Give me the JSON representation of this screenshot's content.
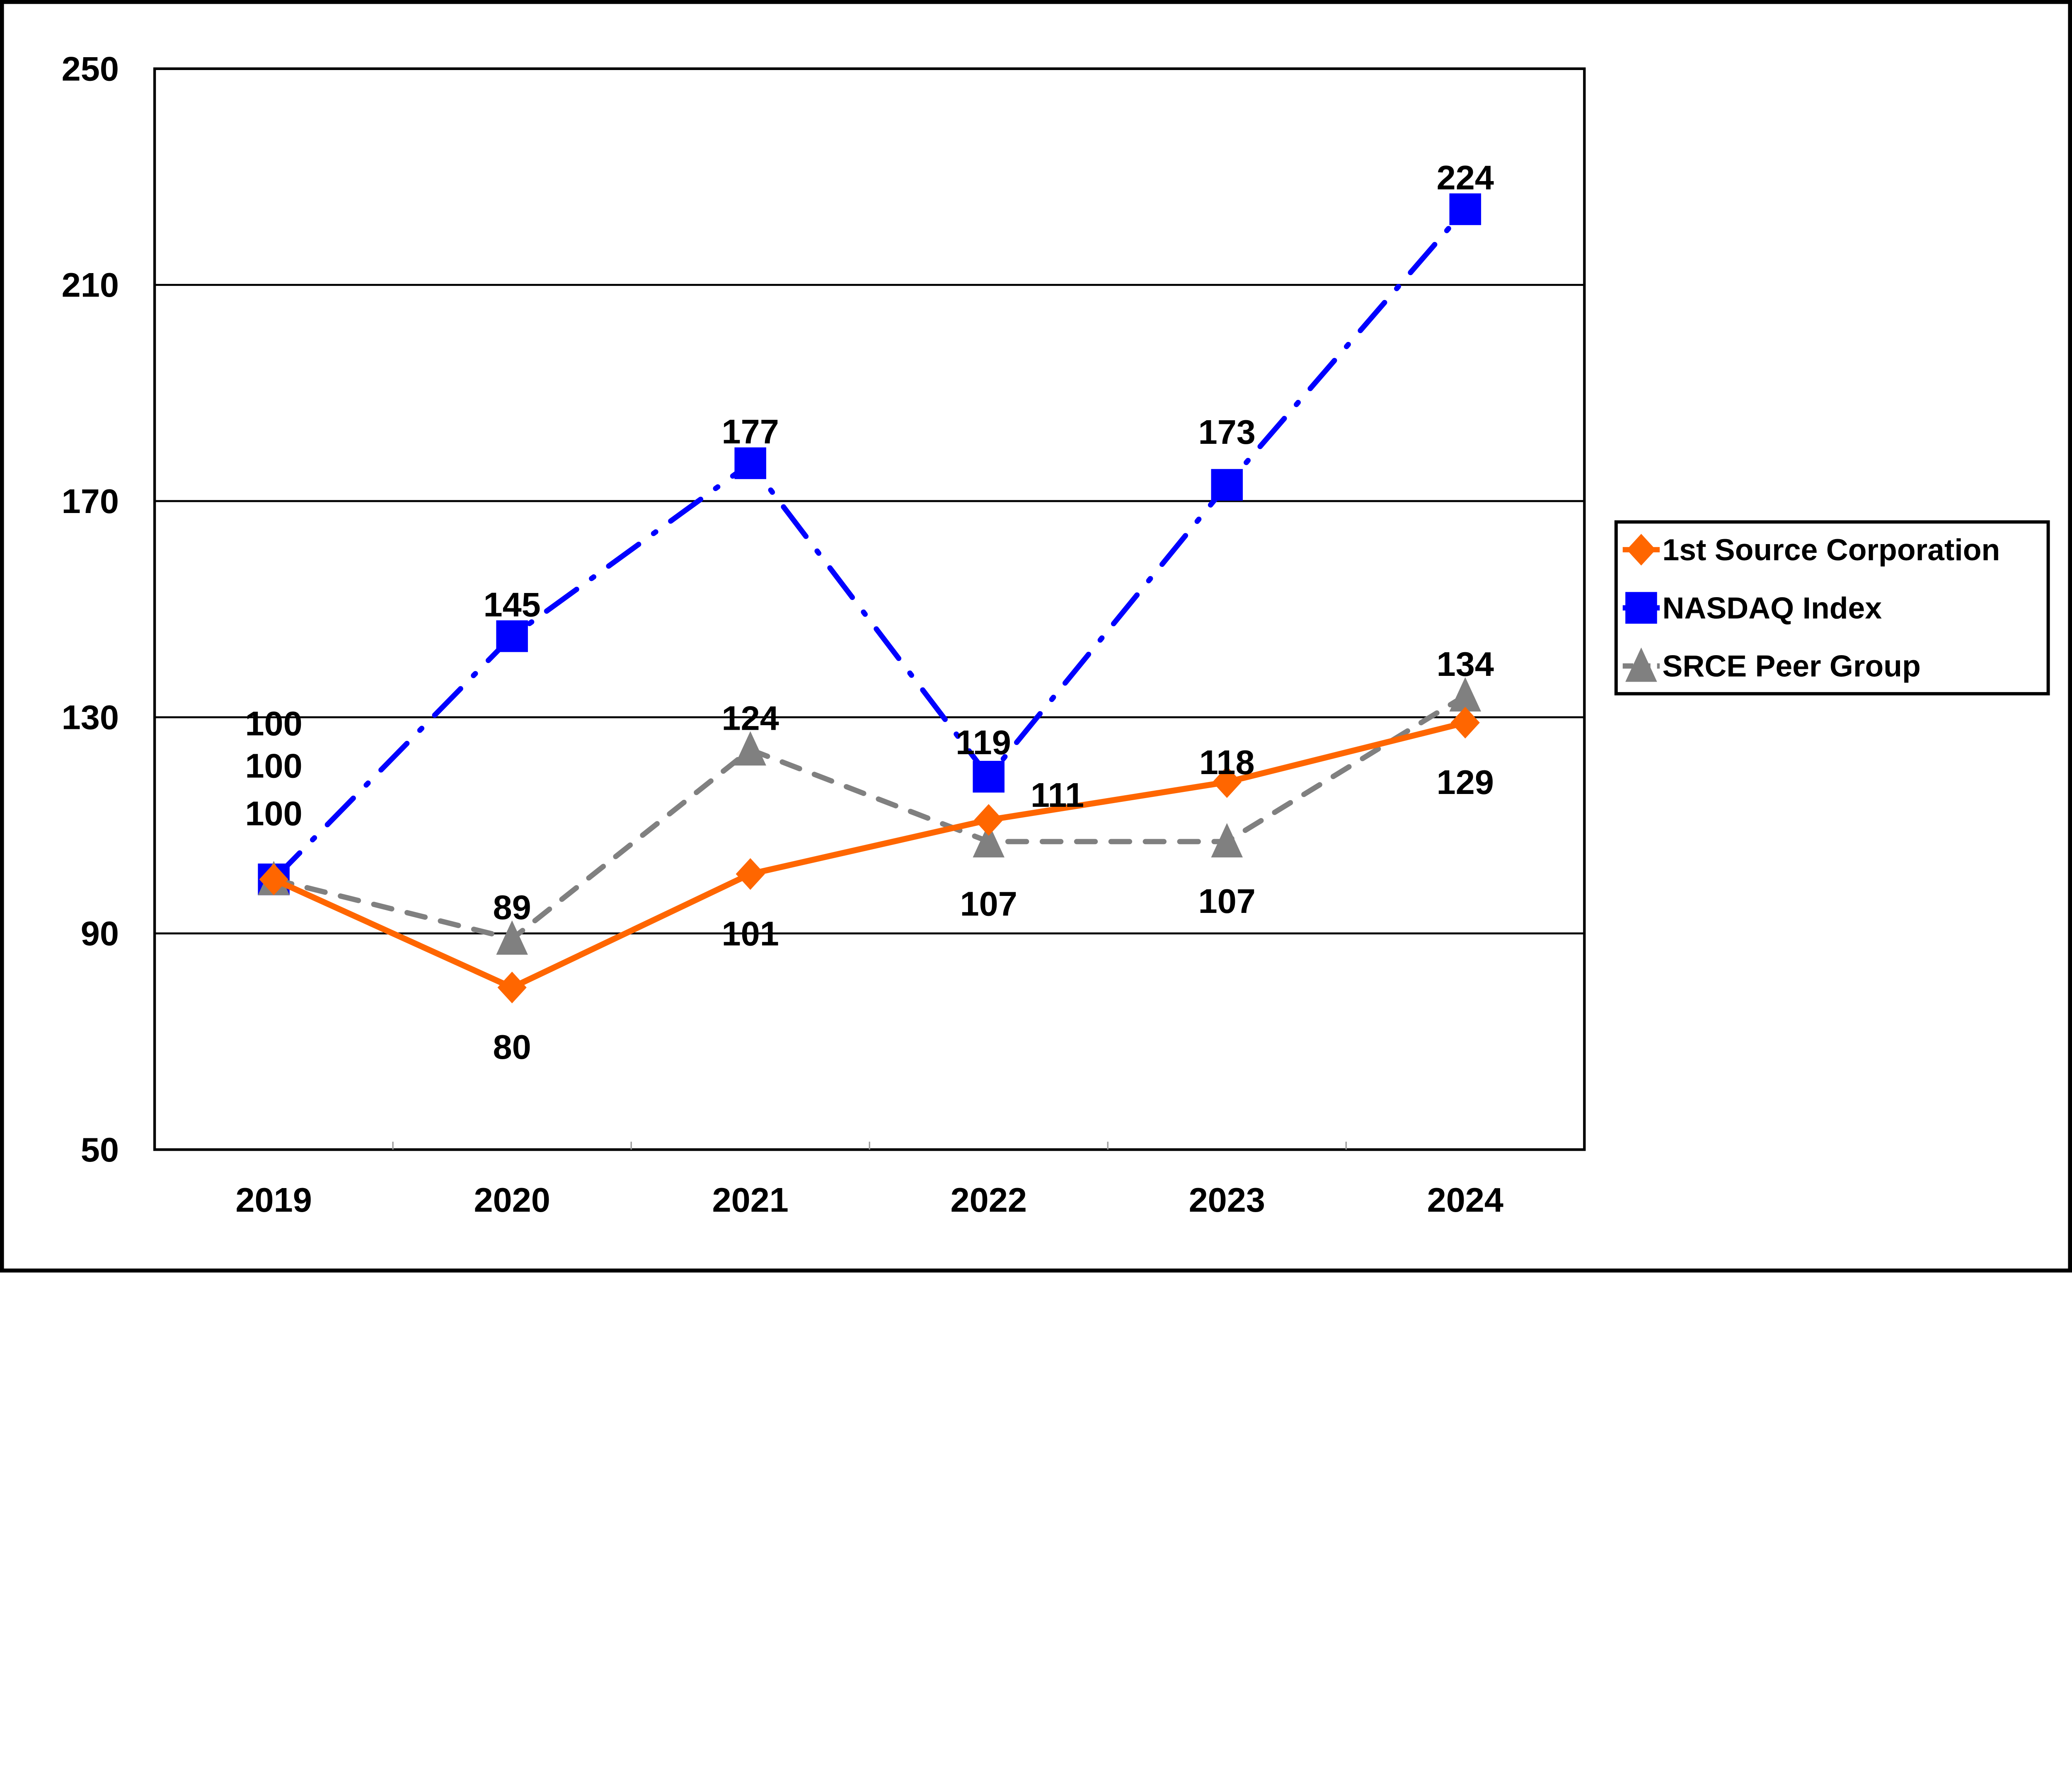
{
  "chart_data": {
    "type": "line",
    "title": "",
    "xlabel": "",
    "ylabel": "",
    "categories": [
      "2019",
      "2020",
      "2021",
      "2022",
      "2023",
      "2024"
    ],
    "ylim": [
      50,
      250
    ],
    "yticks": [
      50,
      90,
      130,
      170,
      210,
      250
    ],
    "grid": true,
    "legend_position": "right",
    "series": [
      {
        "name": "1st Source Corporation",
        "values": [
          100,
          80,
          101,
          111,
          118,
          129
        ],
        "color": "#FF6600",
        "marker": "diamond",
        "line": "solid"
      },
      {
        "name": "NASDAQ Index",
        "values": [
          100,
          145,
          177,
          119,
          173,
          224
        ],
        "color": "#0000FF",
        "marker": "square",
        "line": "dash-dot"
      },
      {
        "name": "SRCE Peer Group",
        "values": [
          100,
          89,
          124,
          107,
          107,
          134
        ],
        "color": "#808080",
        "marker": "triangle",
        "line": "dashed"
      }
    ]
  }
}
